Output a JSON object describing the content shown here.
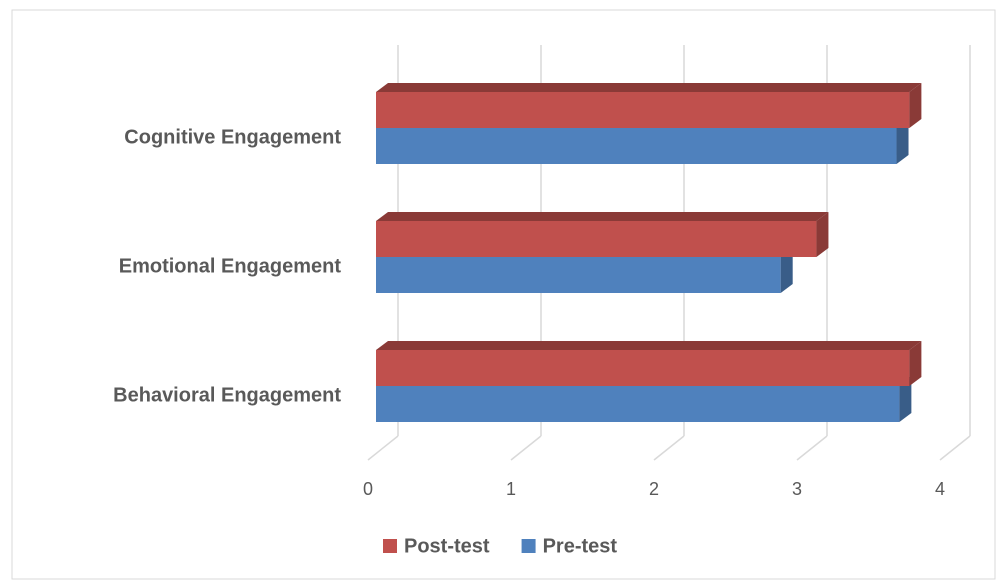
{
  "chart_data": {
    "type": "bar3d",
    "categories": [
      "Cognitive Engagement",
      "Emotional Engagement",
      "Behavioral Engagement"
    ],
    "series": [
      {
        "name": "Post-test",
        "color": "#c0504d",
        "values": [
          3.73,
          3.08,
          3.73
        ]
      },
      {
        "name": "Pre-test",
        "color": "#4f81bd",
        "values": [
          3.64,
          2.83,
          3.66
        ]
      }
    ],
    "xlim": [
      0,
      4
    ],
    "xticks": [
      0,
      1,
      2,
      3,
      4
    ],
    "grid": true,
    "legend": "bottom"
  }
}
